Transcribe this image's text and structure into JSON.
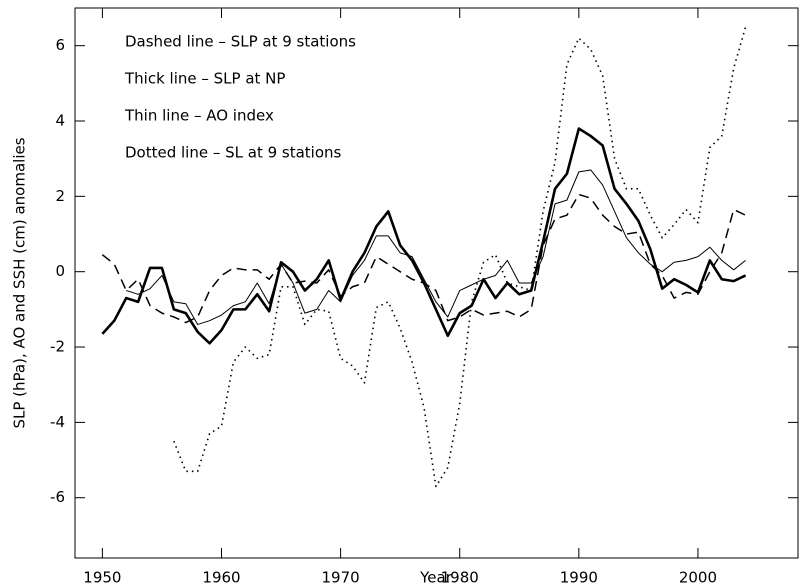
{
  "chart_data": {
    "type": "line",
    "xlabel": "Year",
    "ylabel": "SLP (hPa), AO and SSH (cm) anomalies",
    "annotations": [
      "Dashed line – SLP at 9 stations",
      "Thick line – SLP at NP",
      "Thin line – AO index",
      "Dotted line – SL at 9 stations"
    ],
    "x": [
      1950,
      1951,
      1952,
      1953,
      1954,
      1955,
      1956,
      1957,
      1958,
      1959,
      1960,
      1961,
      1962,
      1963,
      1964,
      1965,
      1966,
      1967,
      1968,
      1969,
      1970,
      1971,
      1972,
      1973,
      1974,
      1975,
      1976,
      1977,
      1978,
      1979,
      1980,
      1981,
      1982,
      1983,
      1984,
      1985,
      1986,
      1987,
      1988,
      1989,
      1990,
      1991,
      1992,
      1993,
      1994,
      1995,
      1996,
      1997,
      1998,
      1999,
      2000,
      2001,
      2002,
      2003,
      2004
    ],
    "series": [
      {
        "name": "SLP at 9 stations",
        "color": "#000000",
        "style": "dashed",
        "width": 1.5,
        "values": [
          0.45,
          0.2,
          -0.5,
          -0.2,
          -0.9,
          -1.1,
          -1.2,
          -1.35,
          -1.2,
          -0.5,
          -0.1,
          0.1,
          0.05,
          0.05,
          -0.2,
          0.2,
          -0.3,
          -0.25,
          -0.3,
          0.05,
          -0.65,
          -0.4,
          -0.3,
          0.4,
          0.2,
          0.0,
          -0.2,
          -0.3,
          -0.5,
          -1.3,
          -1.2,
          -1.0,
          -1.15,
          -1.1,
          -1.05,
          -1.2,
          -1.0,
          0.7,
          1.4,
          1.5,
          2.05,
          1.95,
          1.5,
          1.2,
          1.0,
          1.05,
          0.2,
          -0.1,
          -0.7,
          -0.55,
          -0.6,
          0.0,
          0.5,
          1.65,
          1.5
        ]
      },
      {
        "name": "SLP at NP",
        "color": "#000000",
        "style": "solid",
        "width": 2.6,
        "values": [
          -1.65,
          -1.3,
          -0.7,
          -0.8,
          0.1,
          0.1,
          -1.0,
          -1.1,
          -1.6,
          -1.9,
          -1.55,
          -1.0,
          -1.0,
          -0.6,
          -1.05,
          0.25,
          0.0,
          -0.5,
          -0.2,
          0.3,
          -0.75,
          0.0,
          0.5,
          1.2,
          1.6,
          0.7,
          0.3,
          -0.3,
          -1.0,
          -1.7,
          -1.1,
          -0.9,
          -0.2,
          -0.7,
          -0.3,
          -0.6,
          -0.5,
          0.8,
          2.2,
          2.6,
          3.8,
          3.6,
          3.35,
          2.2,
          1.8,
          1.35,
          0.6,
          -0.45,
          -0.2,
          -0.35,
          -0.55,
          0.3,
          -0.2,
          -0.25,
          -0.1
        ]
      },
      {
        "name": "AO index",
        "color": "#000000",
        "style": "solid",
        "width": 1,
        "values": [
          null,
          null,
          -0.5,
          -0.6,
          -0.45,
          -0.1,
          -0.8,
          -0.85,
          -1.4,
          -1.3,
          -1.15,
          -0.9,
          -0.8,
          -0.3,
          -0.85,
          0.2,
          -0.3,
          -1.1,
          -1.0,
          -0.5,
          -0.8,
          -0.1,
          0.3,
          0.95,
          0.95,
          0.5,
          0.4,
          -0.2,
          -0.8,
          -1.2,
          -0.5,
          -0.35,
          -0.2,
          -0.1,
          0.3,
          -0.3,
          -0.3,
          0.4,
          1.8,
          1.9,
          2.65,
          2.7,
          2.3,
          1.6,
          0.9,
          0.5,
          0.2,
          0.0,
          0.25,
          0.3,
          0.4,
          0.65,
          0.3,
          0.05,
          0.3
        ]
      },
      {
        "name": "SL at 9 stations",
        "color": "#000000",
        "style": "dotted",
        "width": 1.6,
        "values": [
          null,
          null,
          null,
          null,
          null,
          null,
          -4.5,
          -5.3,
          -5.3,
          -4.3,
          -4.1,
          -2.4,
          -2.0,
          -2.3,
          -2.2,
          -0.4,
          -0.4,
          -1.4,
          -1.0,
          -1.05,
          -2.3,
          -2.5,
          -2.95,
          -0.95,
          -0.8,
          -1.5,
          -2.4,
          -3.6,
          -5.7,
          -5.2,
          -3.5,
          -0.8,
          0.25,
          0.45,
          -0.3,
          -0.4,
          -0.5,
          1.6,
          2.9,
          5.5,
          6.2,
          5.9,
          5.2,
          3.0,
          2.2,
          2.2,
          1.5,
          0.9,
          1.25,
          1.65,
          1.3,
          3.3,
          3.6,
          5.4,
          6.5
        ]
      }
    ],
    "xlim": [
      1947.7,
      2008.4
    ],
    "xticks": [
      1950,
      1960,
      1970,
      1980,
      1990,
      2000
    ],
    "ylim": [
      -7.6,
      7
    ],
    "yticks": [
      -6,
      -4,
      -2,
      0,
      2,
      4,
      6
    ],
    "grid": false
  }
}
